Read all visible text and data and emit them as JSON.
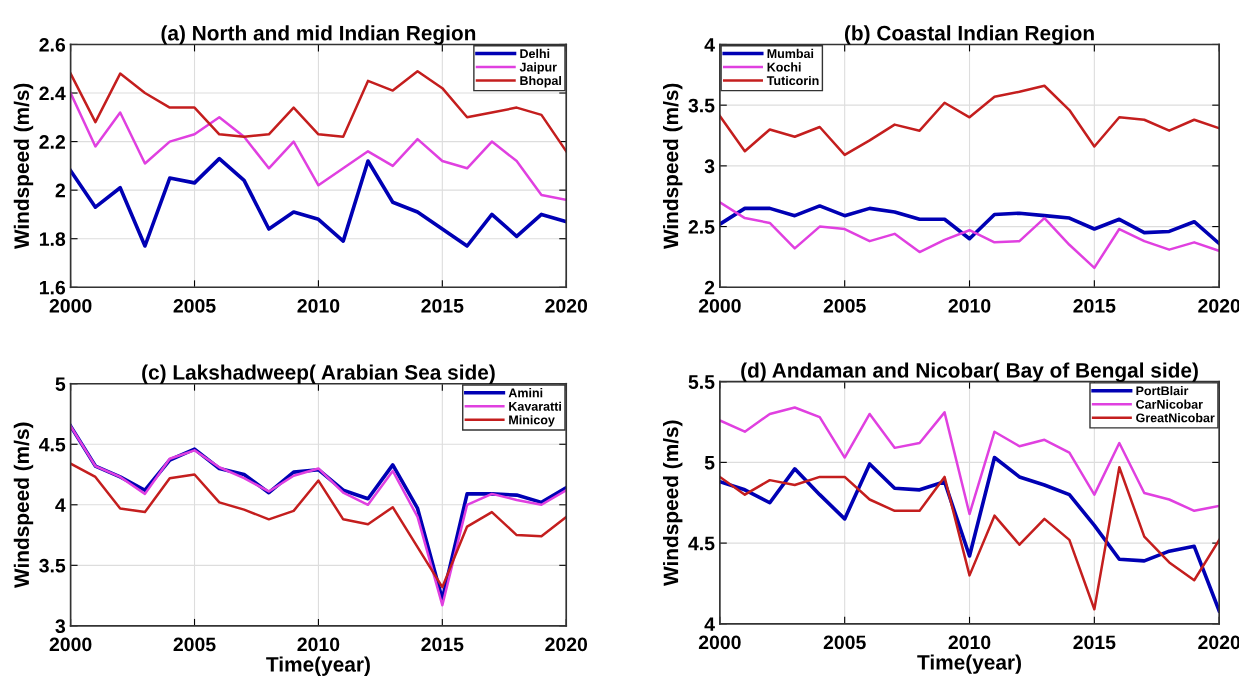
{
  "chart_data": [
    {
      "type": "line",
      "title": "(a) North and mid Indian Region",
      "ylabel": "Windspeed (m/s)",
      "x": [
        2000,
        2001,
        2002,
        2003,
        2004,
        2005,
        2006,
        2007,
        2008,
        2009,
        2010,
        2011,
        2012,
        2013,
        2014,
        2015,
        2016,
        2017,
        2018,
        2019,
        2020
      ],
      "xlim": [
        2000,
        2020
      ],
      "xticks": [
        2000,
        2005,
        2010,
        2015,
        2020
      ],
      "ylim": [
        1.6,
        2.6
      ],
      "yticks": [
        1.6,
        1.8,
        2,
        2.2,
        2.4,
        2.6
      ],
      "grid": true,
      "legend": "top right",
      "series": [
        {
          "name": "Delhi",
          "color": "#0000b4",
          "values": [
            2.08,
            1.93,
            2.01,
            1.77,
            2.05,
            2.03,
            2.13,
            2.04,
            1.84,
            1.91,
            1.88,
            1.79,
            2.12,
            1.95,
            1.91,
            1.84,
            1.77,
            1.9,
            1.81,
            1.9,
            1.87
          ]
        },
        {
          "name": "Jaipur",
          "color": "#e040e0",
          "values": [
            2.4,
            2.18,
            2.32,
            2.11,
            2.2,
            2.23,
            2.3,
            2.22,
            2.09,
            2.2,
            2.02,
            2.09,
            2.16,
            2.1,
            2.21,
            2.12,
            2.09,
            2.2,
            2.12,
            1.98,
            1.96
          ]
        },
        {
          "name": "Bhopal",
          "color": "#c41e1e",
          "values": [
            2.48,
            2.28,
            2.48,
            2.4,
            2.34,
            2.34,
            2.23,
            2.22,
            2.23,
            2.34,
            2.23,
            2.22,
            2.45,
            2.41,
            2.49,
            2.42,
            2.3,
            2.32,
            2.34,
            2.31,
            2.16
          ]
        }
      ]
    },
    {
      "type": "line",
      "title": "(b) Coastal Indian Region",
      "ylabel": "Windspeed (m/s)",
      "x": [
        2000,
        2001,
        2002,
        2003,
        2004,
        2005,
        2006,
        2007,
        2008,
        2009,
        2010,
        2011,
        2012,
        2013,
        2014,
        2015,
        2016,
        2017,
        2018,
        2019,
        2020
      ],
      "xlim": [
        2000,
        2020
      ],
      "xticks": [
        2000,
        2005,
        2010,
        2015,
        2020
      ],
      "ylim": [
        2,
        4
      ],
      "yticks": [
        2,
        2.5,
        3,
        3.5,
        4
      ],
      "grid": true,
      "legend": "top left",
      "series": [
        {
          "name": "Mumbai",
          "color": "#0000b4",
          "values": [
            2.52,
            2.65,
            2.65,
            2.59,
            2.67,
            2.59,
            2.65,
            2.62,
            2.56,
            2.56,
            2.4,
            2.6,
            2.61,
            2.59,
            2.57,
            2.48,
            2.56,
            2.45,
            2.46,
            2.54,
            2.36
          ]
        },
        {
          "name": "Kochi",
          "color": "#e040e0",
          "values": [
            2.7,
            2.57,
            2.53,
            2.32,
            2.5,
            2.48,
            2.38,
            2.44,
            2.29,
            2.39,
            2.47,
            2.37,
            2.38,
            2.57,
            2.35,
            2.16,
            2.48,
            2.38,
            2.31,
            2.37,
            2.3
          ]
        },
        {
          "name": "Tuticorin",
          "color": "#c41e1e",
          "values": [
            3.41,
            3.12,
            3.3,
            3.24,
            3.32,
            3.09,
            3.21,
            3.34,
            3.29,
            3.52,
            3.4,
            3.57,
            3.61,
            3.66,
            3.46,
            3.16,
            3.4,
            3.38,
            3.29,
            3.38,
            3.31
          ]
        }
      ]
    },
    {
      "type": "line",
      "title": "(c) Lakshadweep( Arabian Sea side)",
      "xlabel": "Time(year)",
      "ylabel": "Windspeed (m/s)",
      "x": [
        2000,
        2001,
        2002,
        2003,
        2004,
        2005,
        2006,
        2007,
        2008,
        2009,
        2010,
        2011,
        2012,
        2013,
        2014,
        2015,
        2016,
        2017,
        2018,
        2019,
        2020
      ],
      "xlim": [
        2000,
        2020
      ],
      "xticks": [
        2000,
        2005,
        2010,
        2015,
        2020
      ],
      "ylim": [
        3,
        5
      ],
      "yticks": [
        3,
        3.5,
        4,
        4.5,
        5
      ],
      "grid": true,
      "legend": "top right",
      "series": [
        {
          "name": "Amini",
          "color": "#0000b4",
          "values": [
            4.65,
            4.32,
            4.23,
            4.12,
            4.37,
            4.46,
            4.3,
            4.25,
            4.1,
            4.27,
            4.29,
            4.12,
            4.05,
            4.33,
            3.97,
            3.22,
            4.09,
            4.09,
            4.08,
            4.02,
            4.14
          ]
        },
        {
          "name": "Kavaratti",
          "color": "#e040e0",
          "values": [
            4.65,
            4.32,
            4.23,
            4.09,
            4.38,
            4.45,
            4.31,
            4.22,
            4.11,
            4.24,
            4.3,
            4.1,
            4.0,
            4.28,
            3.9,
            3.17,
            4.0,
            4.09,
            4.04,
            4.0,
            4.12
          ]
        },
        {
          "name": "Minicoy",
          "color": "#c41e1e",
          "values": [
            4.34,
            4.23,
            3.97,
            3.94,
            4.22,
            4.25,
            4.02,
            3.96,
            3.88,
            3.95,
            4.2,
            3.88,
            3.84,
            3.98,
            3.65,
            3.32,
            3.82,
            3.94,
            3.75,
            3.74,
            3.9
          ]
        }
      ]
    },
    {
      "type": "line",
      "title": "(d) Andaman and Nicobar( Bay of Bengal side)",
      "xlabel": "Time(year)",
      "ylabel": "Windspeed (m/s)",
      "x": [
        2000,
        2001,
        2002,
        2003,
        2004,
        2005,
        2006,
        2007,
        2008,
        2009,
        2010,
        2011,
        2012,
        2013,
        2014,
        2015,
        2016,
        2017,
        2018,
        2019,
        2020
      ],
      "xlim": [
        2000,
        2020
      ],
      "xticks": [
        2000,
        2005,
        2010,
        2015,
        2020
      ],
      "ylim": [
        4,
        5.5
      ],
      "yticks": [
        4,
        4.5,
        5,
        5.5
      ],
      "grid": true,
      "legend": "top right",
      "series": [
        {
          "name": "PortBlair",
          "color": "#0000b4",
          "values": [
            4.88,
            4.83,
            4.75,
            4.96,
            4.8,
            4.65,
            4.99,
            4.84,
            4.83,
            4.88,
            4.42,
            5.03,
            4.91,
            4.86,
            4.8,
            4.61,
            4.4,
            4.39,
            4.45,
            4.48,
            4.08
          ]
        },
        {
          "name": "CarNicobar",
          "color": "#e040e0",
          "values": [
            5.26,
            5.19,
            5.3,
            5.34,
            5.28,
            5.03,
            5.3,
            5.09,
            5.12,
            5.31,
            4.68,
            5.19,
            5.1,
            5.14,
            5.06,
            4.8,
            5.12,
            4.81,
            4.77,
            4.7,
            4.73
          ]
        },
        {
          "name": "GreatNicobar",
          "color": "#c41e1e",
          "values": [
            4.91,
            4.8,
            4.89,
            4.86,
            4.91,
            4.91,
            4.77,
            4.7,
            4.7,
            4.91,
            4.3,
            4.67,
            4.49,
            4.65,
            4.52,
            4.09,
            4.97,
            4.54,
            4.38,
            4.27,
            4.52
          ]
        }
      ]
    }
  ]
}
